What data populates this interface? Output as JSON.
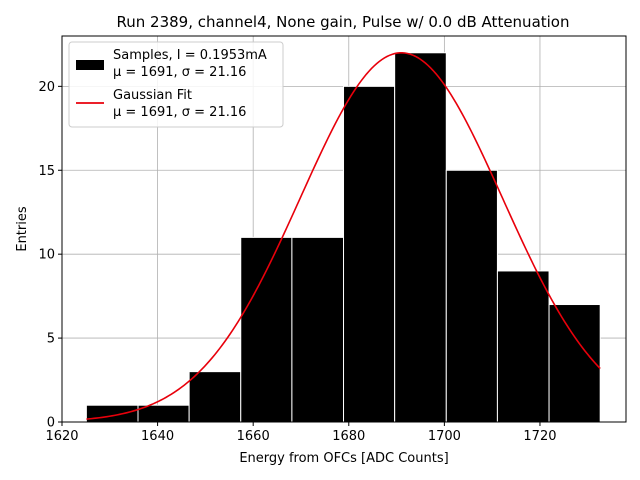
{
  "chart_data": {
    "type": "bar",
    "title": "Run 2389, channel4, None gain, Pulse w/ 0.0 dB Attenuation",
    "xlabel": "Energy from OFCs [ADC Counts]",
    "ylabel": "Entries",
    "xlim": [
      1620,
      1738
    ],
    "ylim": [
      0,
      23
    ],
    "xticks": [
      1620,
      1640,
      1660,
      1680,
      1700,
      1720
    ],
    "yticks": [
      0,
      5,
      10,
      15,
      20
    ],
    "grid": true,
    "legend_position": "top-left",
    "histogram": {
      "bin_edges": [
        1625.1,
        1635.9,
        1646.6,
        1657.4,
        1668.1,
        1678.9,
        1689.6,
        1700.4,
        1711.1,
        1721.9,
        1732.6
      ],
      "counts": [
        1,
        1,
        3,
        11,
        11,
        20,
        22,
        15,
        9,
        7
      ],
      "color": "#000000",
      "legend_line1": "Samples, I = 0.1953mA",
      "legend_line2": "μ = 1691, σ = 21.16"
    },
    "fit": {
      "mu": 1691,
      "sigma": 21.16,
      "amplitude": 22,
      "x_range": [
        1625.1,
        1732.6
      ],
      "color": "#e8000b",
      "legend_line1": "Gaussian Fit",
      "legend_line2": "μ = 1691, σ = 21.16"
    }
  }
}
